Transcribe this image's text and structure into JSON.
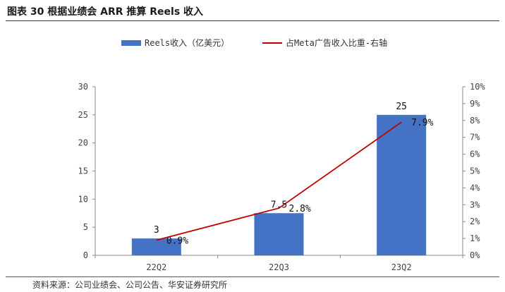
{
  "figure": {
    "title": "图表 30  根据业绩会 ARR 推算 Reels 收入",
    "source": "资料来源：公司业绩会、公司公告、华安证券研究所"
  },
  "chart_data": {
    "type": "bar",
    "categories": [
      "22Q2",
      "22Q3",
      "23Q2"
    ],
    "series": [
      {
        "name": "Reels收入（亿美元）",
        "type": "bar",
        "axis": "left",
        "color": "#4472C4",
        "values": [
          3,
          7.5,
          25
        ],
        "labels": [
          "3",
          "7.5",
          "25"
        ]
      },
      {
        "name": "占Meta广告收入比重-右轴",
        "type": "line",
        "axis": "right",
        "color": "#C00000",
        "values": [
          0.9,
          2.8,
          7.9
        ],
        "labels": [
          "0.9%",
          "2.8%",
          "7.9%"
        ]
      }
    ],
    "left_axis": {
      "min": 0,
      "max": 30,
      "ticks": [
        "0",
        "5",
        "10",
        "15",
        "20",
        "25",
        "30"
      ]
    },
    "right_axis": {
      "min": 0,
      "max": 10,
      "ticks": [
        "0%",
        "1%",
        "2%",
        "3%",
        "4%",
        "5%",
        "6%",
        "7%",
        "8%",
        "9%",
        "10%"
      ]
    },
    "legend_position": "top",
    "grid": false
  }
}
